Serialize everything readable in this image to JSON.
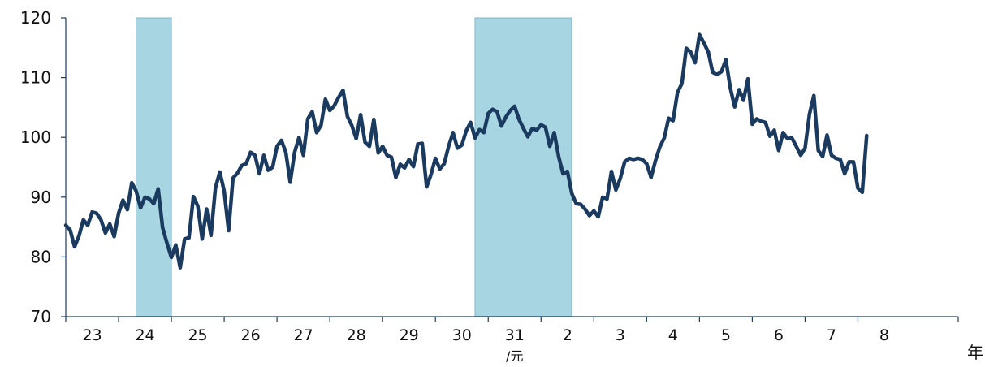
{
  "chart_data": {
    "type": "line",
    "title": "",
    "xlabel": "",
    "ylabel": "",
    "x_unit": "年",
    "ylim": [
      70,
      120
    ],
    "yticks": [
      70,
      80,
      90,
      100,
      110,
      120
    ],
    "grid": false,
    "x_tick_labels": [
      "23",
      "24",
      "25",
      "26",
      "27",
      "28",
      "29",
      "30",
      "31",
      "2",
      "3",
      "4",
      "5",
      "6",
      "7",
      "8"
    ],
    "x_tick_sublabels": {
      "31": "/元"
    },
    "shaded_periods": [
      {
        "from": 2012.33,
        "to": 2013.0
      },
      {
        "from": 2018.75,
        "to": 2020.58
      }
    ],
    "colors": {
      "line": "#1a3a5f",
      "shade": "#a8d5e2",
      "shade_edge": "#7ab8cc",
      "axis": "#1a3a5f"
    },
    "series": [
      {
        "start": "2011-01",
        "step": "month",
        "values": [
          85.3,
          84.5,
          81.7,
          83.5,
          86.2,
          85.3,
          87.5,
          87.3,
          86.2,
          84.0,
          85.5,
          83.4,
          87.3,
          89.5,
          87.9,
          92.4,
          91.0,
          88.2,
          90.0,
          89.7,
          88.9,
          91.4,
          84.9,
          82.3,
          79.9,
          82.0,
          78.2,
          83.0,
          83.2,
          90.1,
          88.5,
          83.0,
          88.0,
          83.6,
          91.5,
          94.2,
          91.0,
          84.4,
          93.2,
          94.0,
          95.3,
          95.6,
          97.5,
          97.0,
          93.9,
          97.0,
          94.5,
          95.0,
          98.5,
          99.5,
          97.5,
          92.5,
          97.5,
          100.0,
          97.0,
          103.1,
          104.3,
          100.8,
          102.0,
          106.4,
          104.5,
          105.3,
          106.7,
          107.9,
          103.5,
          102.0,
          99.8,
          103.8,
          99.2,
          98.5,
          103.0,
          97.4,
          98.5,
          97.0,
          96.7,
          93.3,
          95.5,
          94.9,
          96.3,
          95.1,
          98.9,
          99.0,
          91.7,
          93.8,
          96.5,
          94.7,
          95.6,
          98.5,
          100.8,
          98.2,
          98.7,
          101.1,
          102.5,
          99.9,
          101.3,
          100.8,
          104.0,
          104.7,
          104.3,
          101.9,
          103.4,
          104.5,
          105.2,
          103.0,
          101.5,
          100.1,
          101.5,
          101.2,
          102.1,
          101.7,
          98.5,
          100.8,
          96.8,
          93.9,
          94.3,
          90.6,
          88.9,
          88.8,
          88.0,
          86.9,
          87.7,
          86.7,
          90.0,
          89.7,
          94.3,
          91.2,
          93.1,
          95.9,
          96.5,
          96.3,
          96.5,
          96.3,
          95.6,
          93.3,
          96.1,
          98.4,
          99.9,
          103.2,
          102.8,
          107.5,
          109.0,
          114.9,
          114.3,
          112.5,
          117.2,
          115.8,
          114.3,
          110.9,
          110.5,
          111.0,
          113.0,
          108.3,
          105.1,
          108.0,
          106.2,
          109.8,
          102.2,
          103.1,
          102.7,
          102.5,
          100.2,
          101.2,
          97.8,
          100.8,
          99.8,
          99.9,
          98.5,
          97.0,
          98.2,
          103.9,
          107.0,
          97.8,
          96.8,
          100.4,
          97.0,
          96.5,
          96.3,
          93.9,
          95.9,
          95.9,
          91.5,
          90.8,
          100.3
        ]
      }
    ]
  }
}
